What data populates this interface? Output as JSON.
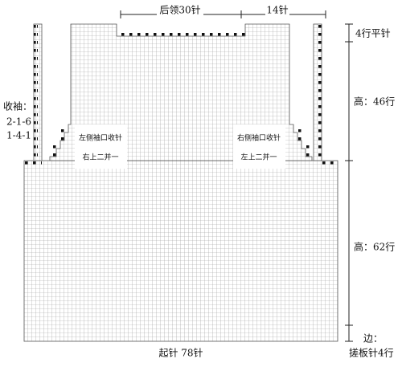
{
  "top": {
    "neck": "后领30针",
    "side": "14针"
  },
  "right": {
    "flat": "4行平针",
    "upper": "高：46行",
    "lower": "高：62行",
    "edge": "边：",
    "edge_rows": "搓板针4行"
  },
  "left": {
    "title": "收袖：",
    "rule1": "2-1-6",
    "rule2": "1-4-1"
  },
  "boxes": [
    {
      "title": "左侧袖口收针",
      "method": "右上二并一"
    },
    {
      "title": "右侧袖口收针",
      "method": "左上二并一"
    }
  ],
  "bottom": "起针 78针"
}
